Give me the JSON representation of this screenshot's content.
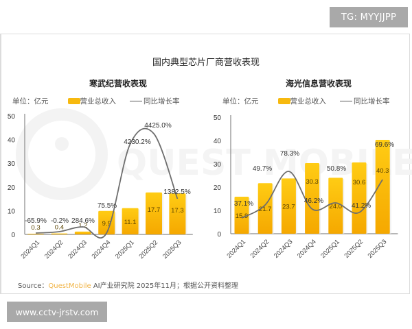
{
  "watermarks": {
    "top_badge": "TG: MYYJJPP",
    "bottom_badge": "www.cctv-jrstv.com",
    "background_text": "QUEST MOBILE"
  },
  "main_title": "国内典型芯片厂商营收表现",
  "legend": {
    "unit": "单位：亿元",
    "bar_label": "营业总收入",
    "line_label": "同比增长率"
  },
  "source": {
    "prefix": "Source：",
    "brand": "QuestMobile",
    "suffix": " AI产业研究院 2025年11月；根据公开资料整理"
  },
  "colors": {
    "bar": "#f7b90f",
    "bar_dark": "#f5a800",
    "line": "#6e6e6e",
    "axis": "#8a8a8a",
    "badge": "#a9a9a9",
    "brand": "#f1b446"
  },
  "chart_data": [
    {
      "type": "bar+line",
      "title": "寒武纪营收表现",
      "categories": [
        "2024Q1",
        "2024Q2",
        "2024Q3",
        "2024Q4",
        "2025Q1",
        "2025Q2",
        "2025Q3"
      ],
      "series": [
        {
          "name": "营业总收入",
          "unit": "亿元",
          "type": "bar",
          "values": [
            0.3,
            0.4,
            1.2,
            9.9,
            11.1,
            17.7,
            17.3
          ]
        },
        {
          "name": "同比增长率",
          "type": "line",
          "values": [
            -65.9,
            -0.2,
            284.6,
            75.5,
            4230.2,
            4425.0,
            1382.5
          ],
          "labels": [
            "-65.9%",
            "-0.2%",
            "284.6%",
            "75.5%",
            "4230.2%",
            "4425.0%",
            "1382.5%"
          ]
        }
      ],
      "ylabel": "单位：亿元",
      "yticks": [
        0,
        10,
        20,
        30,
        40,
        50
      ],
      "ylim": [
        0,
        50
      ],
      "legend_position": "top",
      "grid": false
    },
    {
      "type": "bar+line",
      "title": "海光信息营收表现",
      "categories": [
        "2024Q1",
        "2024Q2",
        "2024Q3",
        "2024Q4",
        "2025Q1",
        "2025Q2",
        "2025Q3"
      ],
      "series": [
        {
          "name": "营业总收入",
          "unit": "亿元",
          "type": "bar",
          "values": [
            15.9,
            21.7,
            23.7,
            30.3,
            24.0,
            30.6,
            40.3
          ]
        },
        {
          "name": "同比增长率",
          "type": "line",
          "values": [
            37.1,
            49.7,
            78.3,
            46.2,
            50.8,
            41.2,
            69.6
          ],
          "labels": [
            "37.1%",
            "49.7%",
            "78.3%",
            "46.2%",
            "50.8%",
            "41.2%",
            "69.6%"
          ]
        }
      ],
      "ylabel": "单位：亿元",
      "yticks": [
        0,
        10,
        20,
        30,
        40,
        50
      ],
      "ylim": [
        0,
        50
      ],
      "legend_position": "top",
      "grid": false
    }
  ]
}
